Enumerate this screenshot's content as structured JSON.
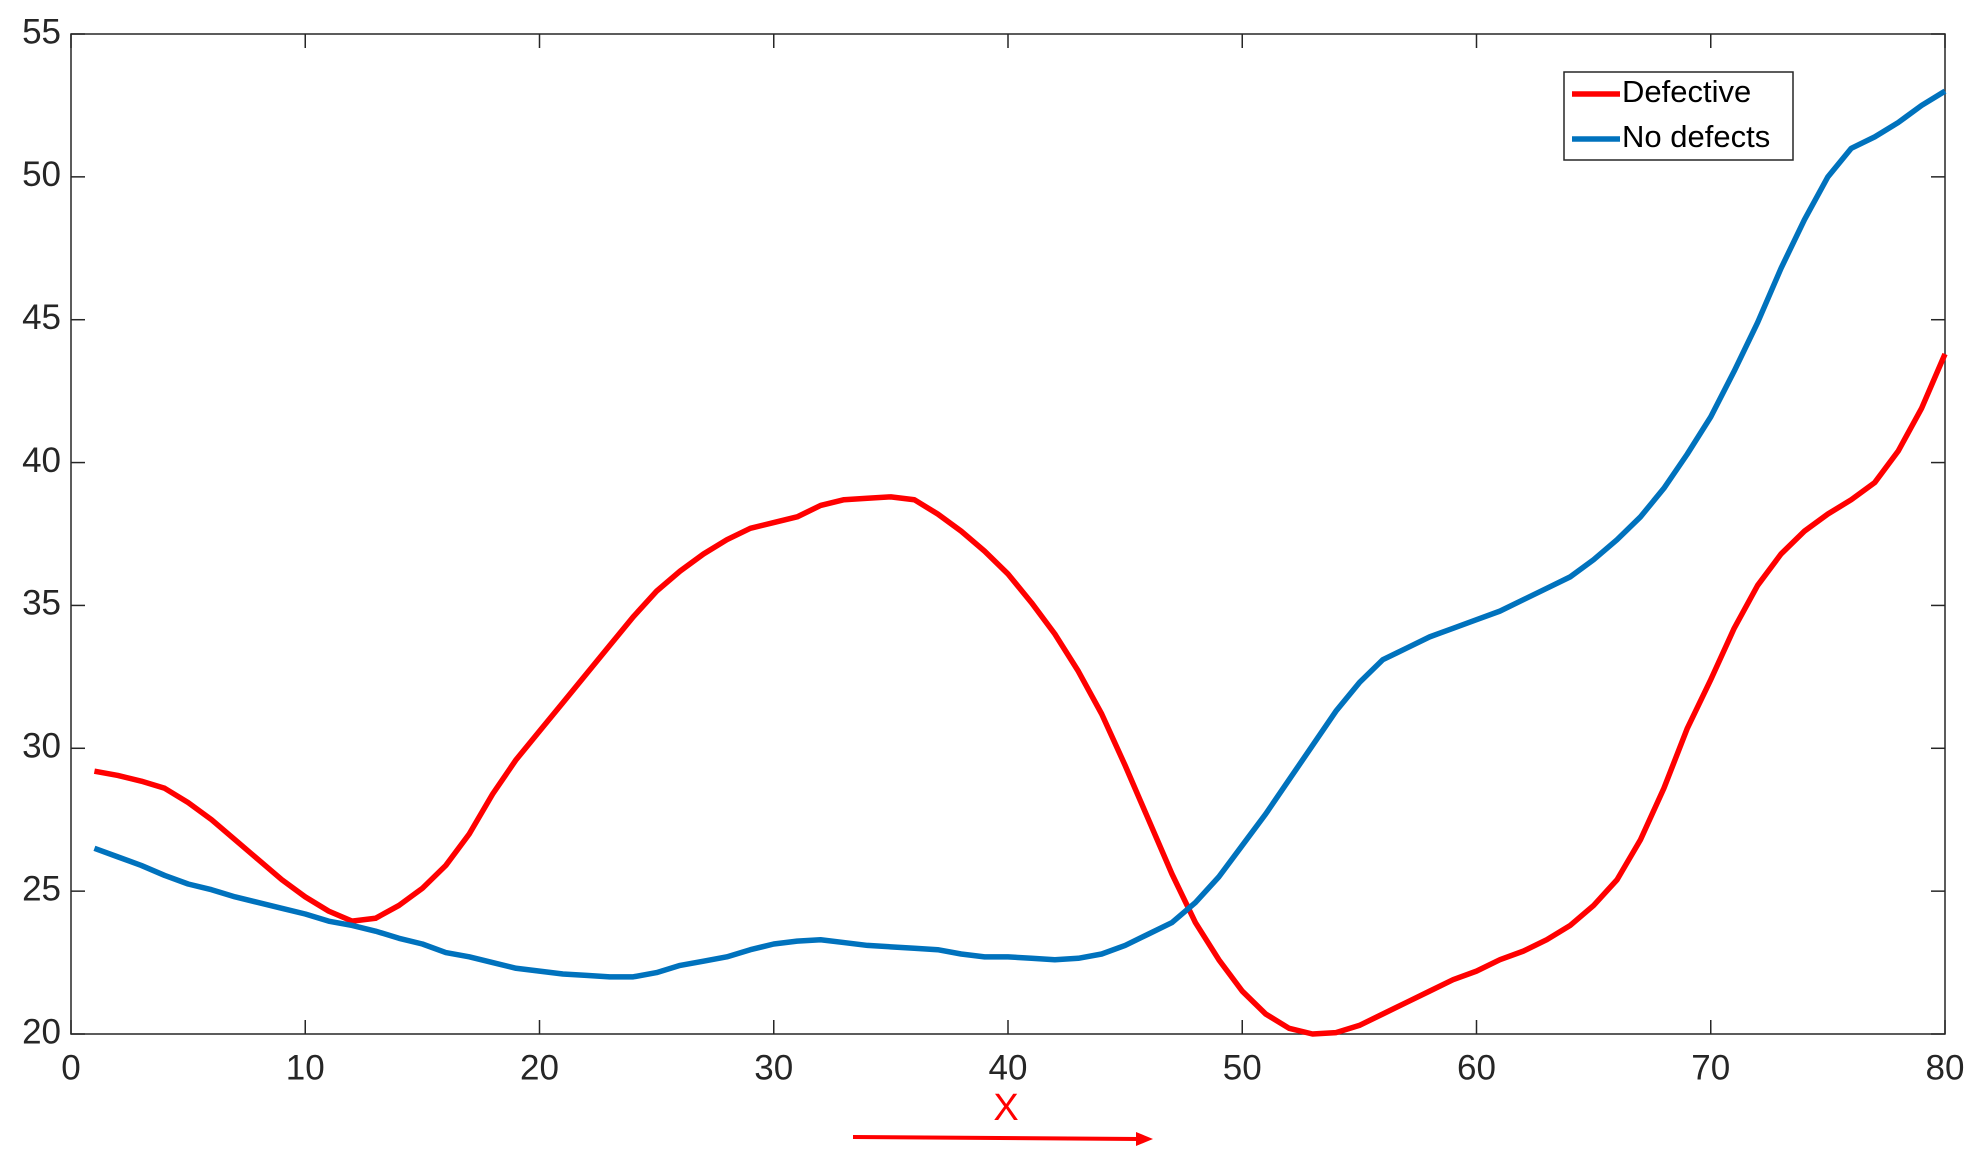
{
  "chart_data": {
    "type": "line",
    "x": [
      1,
      2,
      3,
      4,
      5,
      6,
      7,
      8,
      9,
      10,
      11,
      12,
      13,
      14,
      15,
      16,
      17,
      18,
      19,
      20,
      21,
      22,
      23,
      24,
      25,
      26,
      27,
      28,
      29,
      30,
      31,
      32,
      33,
      34,
      35,
      36,
      37,
      38,
      39,
      40,
      41,
      42,
      43,
      44,
      45,
      46,
      47,
      48,
      49,
      50,
      51,
      52,
      53,
      54,
      55,
      56,
      57,
      58,
      59,
      60,
      61,
      62,
      63,
      64,
      65,
      66,
      67,
      68,
      69,
      70,
      71,
      72,
      73,
      74,
      75,
      76,
      77,
      78,
      79,
      80
    ],
    "series": [
      {
        "name": "Defective",
        "color": "#ff0000",
        "values": [
          29.2,
          29.05,
          28.85,
          28.6,
          28.1,
          27.5,
          26.8,
          26.1,
          25.4,
          24.8,
          24.3,
          23.95,
          24.05,
          24.5,
          25.1,
          25.9,
          27.0,
          28.4,
          29.6,
          30.6,
          31.6,
          32.6,
          33.6,
          34.6,
          35.5,
          36.2,
          36.8,
          37.3,
          37.7,
          37.9,
          38.1,
          38.5,
          38.7,
          38.75,
          38.8,
          38.7,
          38.2,
          37.6,
          36.9,
          36.1,
          35.1,
          34.0,
          32.7,
          31.2,
          29.4,
          27.5,
          25.6,
          23.9,
          22.6,
          21.5,
          20.7,
          20.2,
          20.0,
          20.05,
          20.3,
          20.7,
          21.1,
          21.5,
          21.9,
          22.2,
          22.6,
          22.9,
          23.3,
          23.8,
          24.5,
          25.4,
          26.8,
          28.6,
          30.7,
          32.4,
          34.2,
          35.7,
          36.8,
          37.6,
          38.2,
          38.7,
          39.3,
          40.4,
          41.9,
          43.8
        ]
      },
      {
        "name": "No defects",
        "color": "#0072bd",
        "values": [
          26.5,
          26.2,
          25.9,
          25.55,
          25.25,
          25.05,
          24.8,
          24.6,
          24.4,
          24.2,
          23.95,
          23.8,
          23.6,
          23.35,
          23.15,
          22.85,
          22.7,
          22.5,
          22.3,
          22.2,
          22.1,
          22.05,
          22.0,
          22.0,
          22.15,
          22.4,
          22.55,
          22.7,
          22.95,
          23.15,
          23.25,
          23.3,
          23.2,
          23.1,
          23.05,
          23.0,
          22.95,
          22.8,
          22.7,
          22.7,
          22.65,
          22.6,
          22.65,
          22.8,
          23.1,
          23.5,
          23.9,
          24.6,
          25.5,
          26.6,
          27.7,
          28.9,
          30.1,
          31.3,
          32.3,
          33.1,
          33.5,
          33.9,
          34.2,
          34.5,
          34.8,
          35.2,
          35.6,
          36.0,
          36.6,
          37.3,
          38.1,
          39.1,
          40.3,
          41.6,
          43.2,
          44.9,
          46.8,
          48.5,
          50.0,
          51.0,
          51.4,
          51.9,
          52.5,
          53.0
        ]
      }
    ],
    "xlim": [
      0,
      80
    ],
    "xticks": [
      0,
      10,
      20,
      30,
      40,
      50,
      60,
      70,
      80
    ],
    "ylim": [
      20,
      55
    ],
    "yticks": [
      20,
      25,
      30,
      35,
      40,
      45,
      50,
      55
    ],
    "legend": "top-right",
    "annotation": "X"
  }
}
